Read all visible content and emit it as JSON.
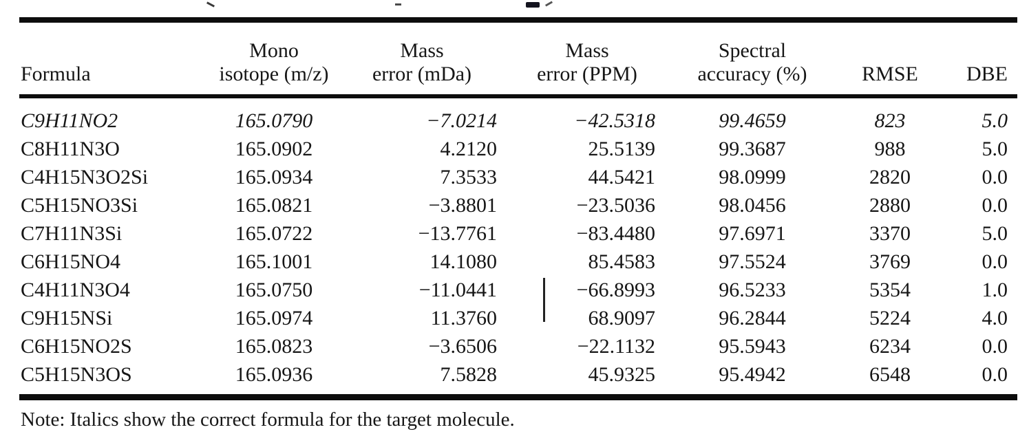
{
  "page": {
    "background": "#ffffff",
    "text_color": "#161616",
    "rule_color": "#0d0d0d"
  },
  "cropped_caption_fragments": "partial glyph marks of a caption line cut off at the top edge",
  "table": {
    "columns": [
      {
        "id": "formula",
        "lines": [
          "Formula"
        ]
      },
      {
        "id": "mono",
        "lines": [
          "Mono",
          "isotope (m/z)"
        ]
      },
      {
        "id": "mda",
        "lines": [
          "Mass",
          "error (mDa)"
        ]
      },
      {
        "id": "ppm",
        "lines": [
          "Mass",
          "error (PPM)"
        ]
      },
      {
        "id": "spectral",
        "lines": [
          "Spectral",
          "accuracy (%)"
        ]
      },
      {
        "id": "rmse",
        "lines": [
          "RMSE"
        ]
      },
      {
        "id": "dbe",
        "lines": [
          "DBE"
        ]
      }
    ],
    "rows": [
      {
        "formula": "C9H11NO2",
        "mono": "165.0790",
        "mda": "−7.0214",
        "ppm": "−42.5318",
        "spectral": "99.4659",
        "rmse": "823",
        "dbe": "5.0",
        "italic": true,
        "ppm_has_scan_artifact": false
      },
      {
        "formula": "C8H11N3O",
        "mono": "165.0902",
        "mda": "4.2120",
        "ppm": "25.5139",
        "spectral": "99.3687",
        "rmse": "988",
        "dbe": "5.0",
        "italic": false,
        "ppm_has_scan_artifact": false
      },
      {
        "formula": "C4H15N3O2Si",
        "mono": "165.0934",
        "mda": "7.3533",
        "ppm": "44.5421",
        "spectral": "98.0999",
        "rmse": "2820",
        "dbe": "0.0",
        "italic": false,
        "ppm_has_scan_artifact": false
      },
      {
        "formula": "C5H15NO3Si",
        "mono": "165.0821",
        "mda": "−3.8801",
        "ppm": "−23.5036",
        "spectral": "98.0456",
        "rmse": "2880",
        "dbe": "0.0",
        "italic": false,
        "ppm_has_scan_artifact": false
      },
      {
        "formula": "C7H11N3Si",
        "mono": "165.0722",
        "mda": "−13.7761",
        "ppm": "−83.4480",
        "spectral": "97.6971",
        "rmse": "3370",
        "dbe": "5.0",
        "italic": false,
        "ppm_has_scan_artifact": false
      },
      {
        "formula": "C6H15NO4",
        "mono": "165.1001",
        "mda": "14.1080",
        "ppm": "85.4583",
        "spectral": "97.5524",
        "rmse": "3769",
        "dbe": "0.0",
        "italic": false,
        "ppm_has_scan_artifact": false
      },
      {
        "formula": "C4H11N3O4",
        "mono": "165.0750",
        "mda": "−11.0441",
        "ppm": "−66.8993",
        "spectral": "96.5233",
        "rmse": "5354",
        "dbe": "1.0",
        "italic": false,
        "ppm_has_scan_artifact": true
      },
      {
        "formula": "C9H15NSi",
        "mono": "165.0974",
        "mda": "11.3760",
        "ppm": "68.9097",
        "spectral": "96.2844",
        "rmse": "5224",
        "dbe": "4.0",
        "italic": false,
        "ppm_has_scan_artifact": false
      },
      {
        "formula": "C6H15NO2S",
        "mono": "165.0823",
        "mda": "−3.6506",
        "ppm": "−22.1132",
        "spectral": "95.5943",
        "rmse": "6234",
        "dbe": "0.0",
        "italic": false,
        "ppm_has_scan_artifact": false
      },
      {
        "formula": "C5H15N3OS",
        "mono": "165.0936",
        "mda": "7.5828",
        "ppm": "45.9325",
        "spectral": "95.4942",
        "rmse": "6548",
        "dbe": "0.0",
        "italic": false,
        "ppm_has_scan_artifact": false
      }
    ],
    "note": "Note: Italics show the correct formula for the target molecule."
  }
}
